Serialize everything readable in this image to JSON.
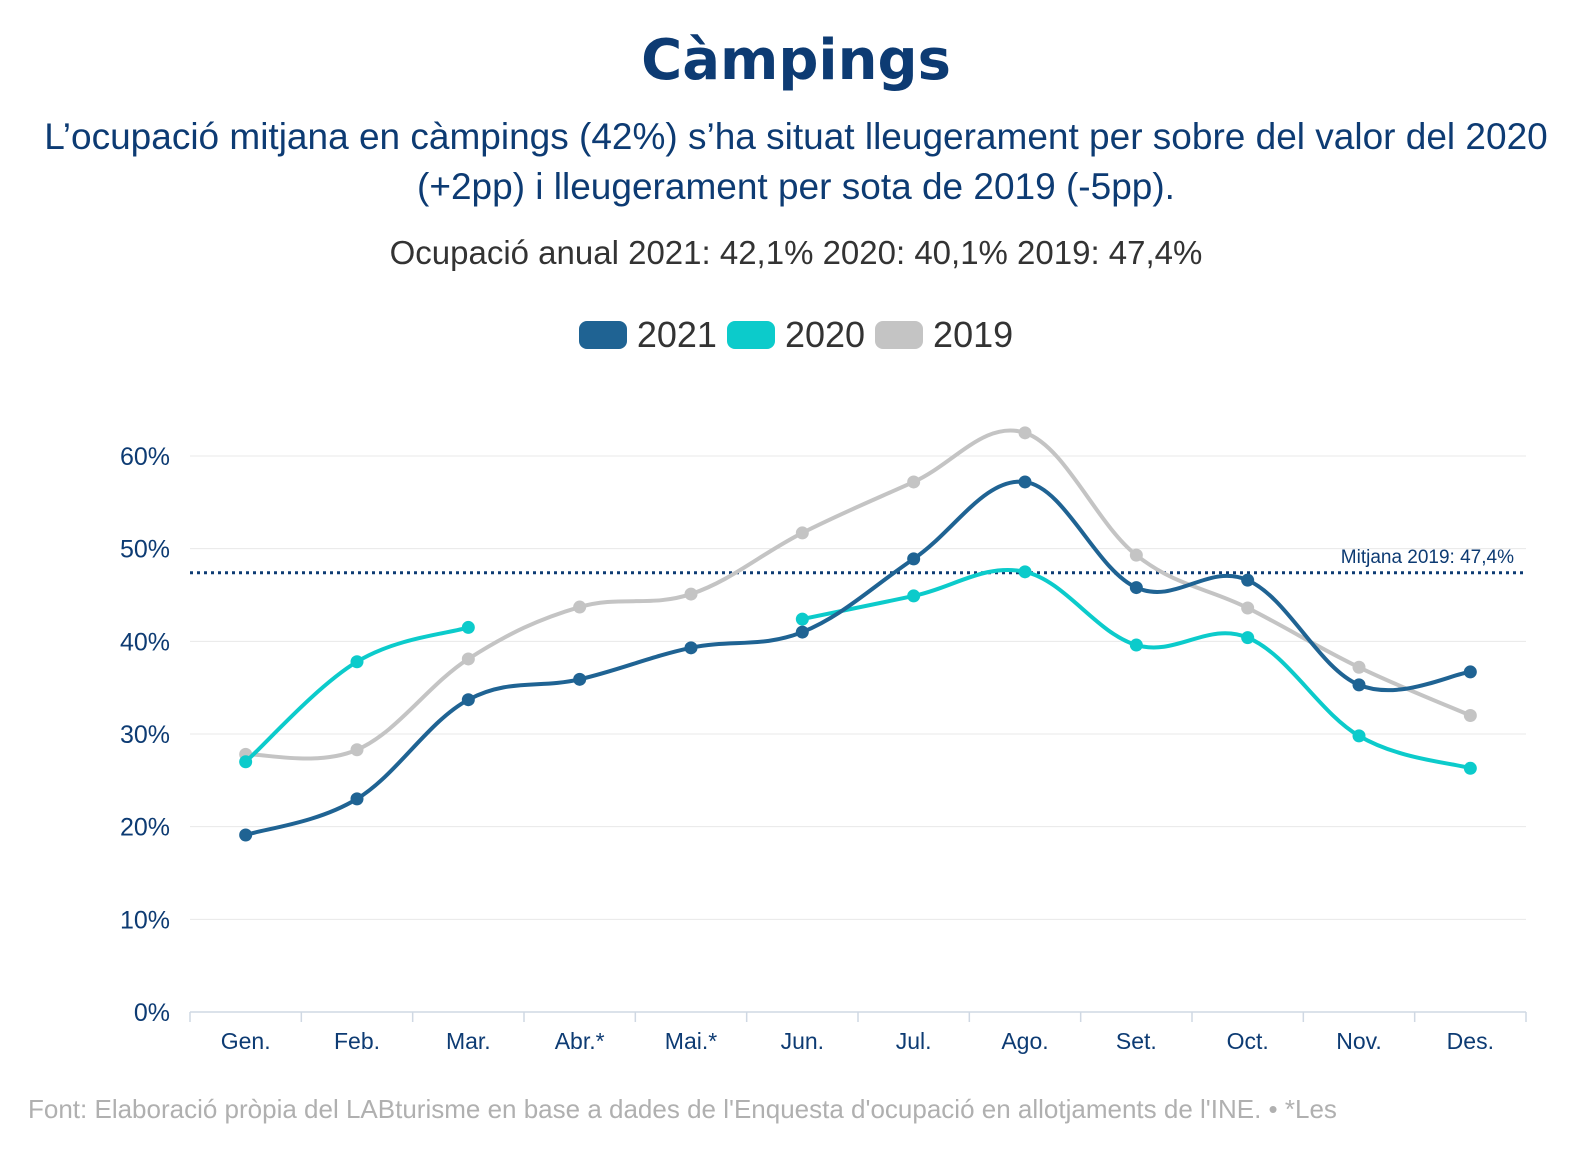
{
  "title": "Càmpings",
  "subtitle": "L’ocupació mitjana en càmpings (42%) s’ha situat lleugerament per sobre del valor del 2020 (+2pp) i lleugerament per sota de 2019 (-5pp).",
  "annual": "Ocupació anual 2021: 42,1% 2020: 40,1% 2019: 47,4%",
  "footer": "Font: Elaboració pròpia del LABturisme en base a dades de l'Enquesta d'ocupació en allotjaments de l'INE. • *Les",
  "chart_data": {
    "type": "line",
    "categories": [
      "Gen.",
      "Feb.",
      "Mar.",
      "Abr.*",
      "Mai.*",
      "Jun.",
      "Jul.",
      "Ago.",
      "Set.",
      "Oct.",
      "Nov.",
      "Des."
    ],
    "ylim": [
      0,
      60
    ],
    "yticks": [
      0,
      10,
      20,
      30,
      40,
      50,
      60
    ],
    "ytick_labels": [
      "0%",
      "10%",
      "20%",
      "30%",
      "40%",
      "50%",
      "60%"
    ],
    "grid": true,
    "legend_position": "top-center",
    "series": [
      {
        "name": "2019",
        "color": "#c4c4c4",
        "values": [
          27.8,
          28.3,
          38.1,
          43.7,
          45.1,
          51.7,
          57.2,
          62.5,
          49.3,
          43.6,
          37.2,
          32.0
        ]
      },
      {
        "name": "2020",
        "color": "#0ccbcb",
        "values": [
          27.0,
          37.8,
          41.5,
          null,
          null,
          42.4,
          44.9,
          47.5,
          39.6,
          40.4,
          29.8,
          26.3
        ]
      },
      {
        "name": "2021",
        "color": "#1f6393",
        "values": [
          19.1,
          23.0,
          33.7,
          35.9,
          39.3,
          41.0,
          48.9,
          57.2,
          45.8,
          46.6,
          35.3,
          36.7
        ]
      }
    ],
    "legend_order": [
      "2021",
      "2020",
      "2019"
    ],
    "reference_line": {
      "value": 47.4,
      "label": "Mitjana 2019: 47,4%",
      "color": "#0d3b73"
    },
    "axis_color": "#0d3b73"
  }
}
